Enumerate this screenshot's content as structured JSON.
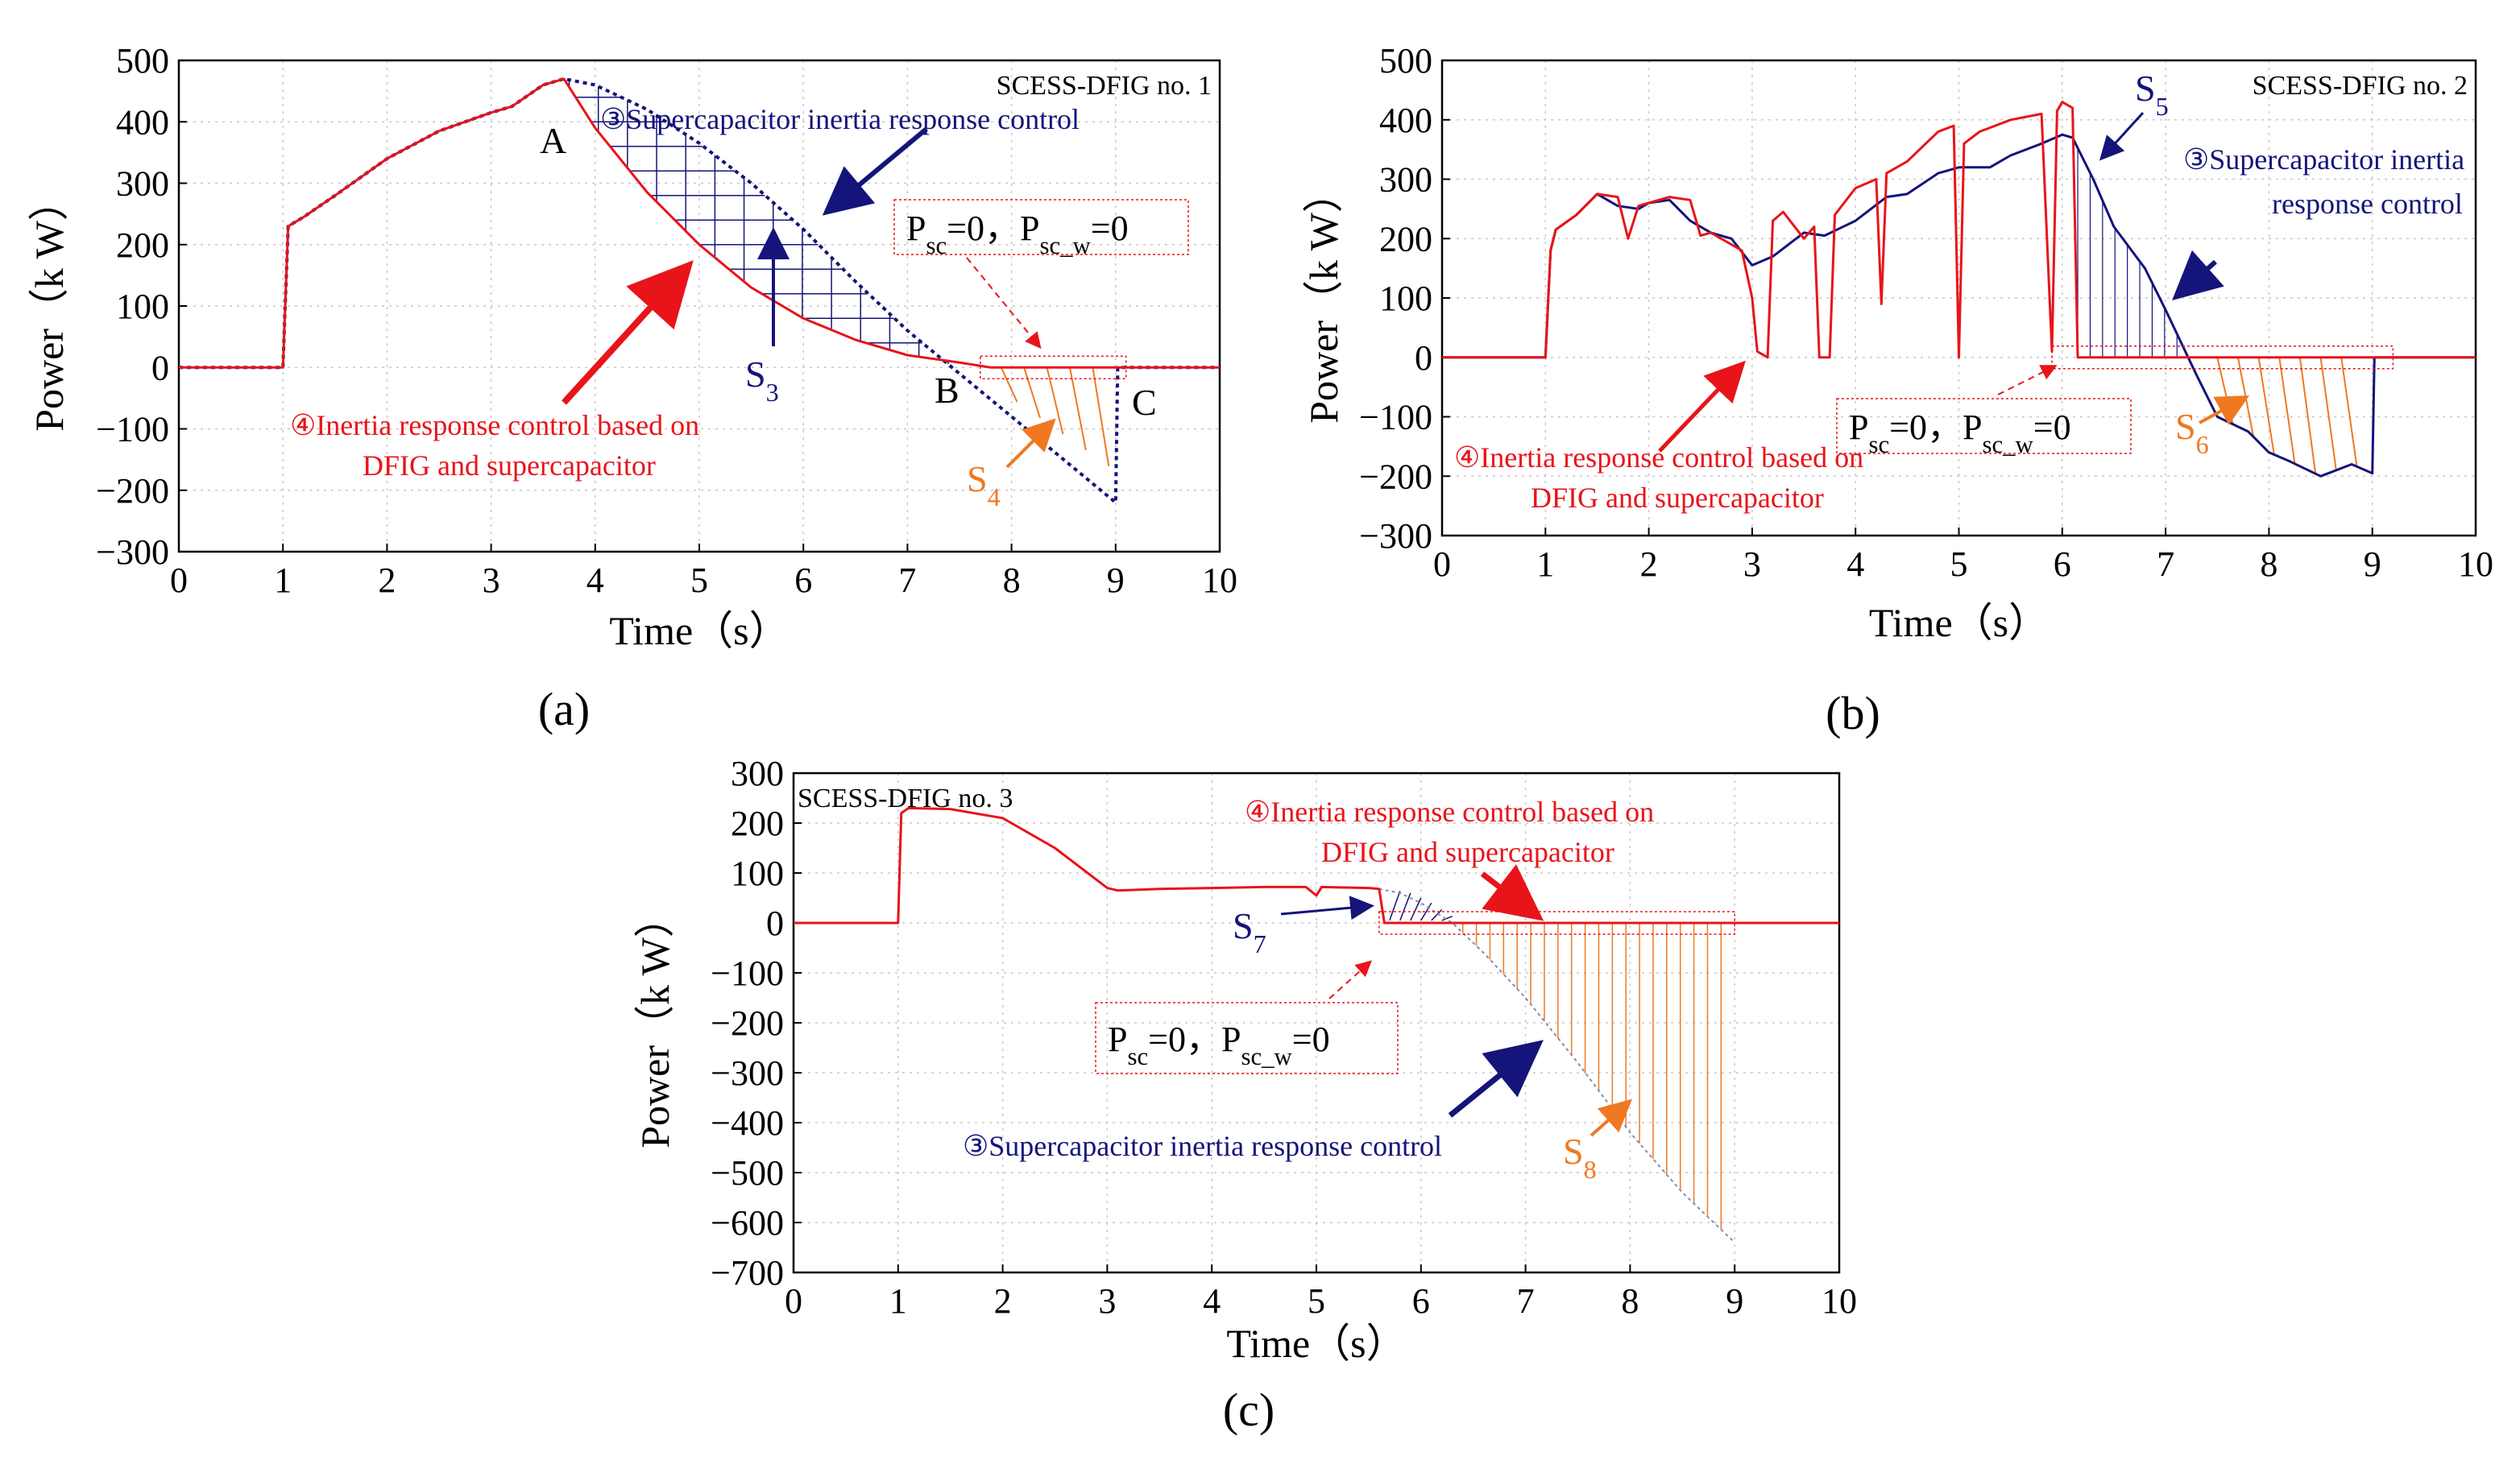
{
  "chart_data": [
    {
      "type": "line",
      "panel": "(a)",
      "corner_label": "SCESS-DFIG no. 1",
      "xlabel": "Time（s）",
      "ylabel": "Power（k W）",
      "xlim": [
        0,
        10
      ],
      "ylim": [
        -300,
        500
      ],
      "xticks": [
        "0",
        "1",
        "2",
        "3",
        "4",
        "5",
        "6",
        "7",
        "8",
        "9",
        "10"
      ],
      "yticks": [
        "−300",
        "−200",
        "−100",
        "0",
        "100",
        "200",
        "300",
        "400",
        "500"
      ],
      "grid": true,
      "colors": {
        "red": "#e8141a",
        "blue": "#14147a",
        "orange": "#f07820"
      },
      "series": [
        {
          "color": "#e8141a",
          "style": "solid",
          "x": [
            0,
            1,
            1.05,
            1.2,
            1.5,
            2,
            2.5,
            3,
            3.2,
            3.5,
            3.7,
            4,
            4.5,
            5,
            5.5,
            6,
            6.5,
            7,
            7.5,
            7.8,
            8,
            9,
            10
          ],
          "y": [
            0,
            0,
            230,
            245,
            280,
            340,
            385,
            415,
            425,
            460,
            470,
            390,
            285,
            200,
            130,
            80,
            45,
            20,
            8,
            0,
            0,
            0,
            0
          ]
        },
        {
          "color": "#14147a",
          "style": "dotted",
          "x": [
            0,
            1,
            1.05,
            1.2,
            1.5,
            2,
            2.5,
            3,
            3.2,
            3.5,
            3.7,
            4,
            4.5,
            5,
            5.5,
            6,
            6.5,
            7,
            7.5,
            8,
            8.5,
            9,
            9.02,
            9.05,
            10
          ],
          "y": [
            0,
            0,
            230,
            245,
            280,
            340,
            385,
            415,
            425,
            460,
            470,
            460,
            420,
            365,
            300,
            225,
            140,
            60,
            -10,
            -80,
            -150,
            -220,
            0,
            0,
            0
          ]
        }
      ],
      "annotations": {
        "point_a": "A",
        "point_b": "B",
        "point_c": "C",
        "s_blue": "S",
        "s_blue_sub": "3",
        "s_orange": "S",
        "s_orange_sub": "4",
        "blue_text_lines": [
          "③Supercapacitor inertia response control"
        ],
        "red_text_lines": [
          "④Inertia response control based on",
          "DFIG and supercapacitor"
        ],
        "psc_text": "P",
        "psc_sub": "sc",
        "psc_eq": "=0，",
        "pscw_text": "P",
        "pscw_sub": "sc_w",
        "pscw_eq": "=0"
      }
    },
    {
      "type": "line",
      "panel": "(b)",
      "corner_label": "SCESS-DFIG no. 2",
      "xlabel": "Time（s）",
      "ylabel": "Power（k W）",
      "xlim": [
        0,
        10
      ],
      "ylim": [
        -300,
        500
      ],
      "xticks": [
        "0",
        "1",
        "2",
        "3",
        "4",
        "5",
        "6",
        "7",
        "8",
        "9",
        "10"
      ],
      "yticks": [
        "−300",
        "−200",
        "−100",
        "0",
        "100",
        "200",
        "300",
        "400",
        "500"
      ],
      "grid": true,
      "series": [
        {
          "color": "#e8141a",
          "style": "solid",
          "x": [
            0,
            1,
            1.05,
            1.1,
            1.3,
            1.5,
            1.7,
            1.8,
            1.9,
            2.0,
            2.2,
            2.4,
            2.5,
            2.6,
            2.9,
            3.0,
            3.05,
            3.15,
            3.2,
            3.3,
            3.5,
            3.6,
            3.65,
            3.75,
            3.8,
            4.0,
            4.2,
            4.25,
            4.3,
            4.5,
            4.8,
            4.95,
            5.0,
            5.05,
            5.2,
            5.5,
            5.8,
            5.9,
            5.95,
            6.0,
            6.1,
            6.15,
            6.2,
            6.3,
            7,
            8,
            9,
            10
          ],
          "y": [
            0,
            0,
            180,
            215,
            240,
            275,
            270,
            200,
            255,
            260,
            270,
            265,
            205,
            210,
            180,
            100,
            10,
            0,
            230,
            245,
            200,
            220,
            0,
            0,
            240,
            285,
            300,
            90,
            310,
            330,
            380,
            390,
            0,
            360,
            380,
            400,
            410,
            10,
            415,
            430,
            420,
            0,
            0,
            0,
            0,
            0,
            0,
            0
          ]
        },
        {
          "color": "#14147a",
          "style": "solid",
          "x": [
            0,
            1,
            1.05,
            1.1,
            1.3,
            1.5,
            1.7,
            1.9,
            2.0,
            2.2,
            2.4,
            2.6,
            2.8,
            3.0,
            3.2,
            3.5,
            3.7,
            4.0,
            4.3,
            4.5,
            4.8,
            5.0,
            5.3,
            5.5,
            5.8,
            6.0,
            6.1,
            6.3,
            6.5,
            6.8,
            7.0,
            7.3,
            7.5,
            7.8,
            8.0,
            8.2,
            8.5,
            8.8,
            9.0,
            9.02,
            9.05,
            10
          ],
          "y": [
            0,
            0,
            180,
            215,
            240,
            275,
            255,
            250,
            260,
            265,
            230,
            210,
            200,
            155,
            170,
            210,
            205,
            230,
            270,
            275,
            310,
            320,
            320,
            340,
            360,
            375,
            370,
            300,
            220,
            150,
            80,
            -30,
            -100,
            -125,
            -160,
            -175,
            -200,
            -180,
            -195,
            0,
            0,
            0
          ]
        }
      ],
      "annotations": {
        "s_blue": "S",
        "s_blue_sub": "5",
        "s_orange": "S",
        "s_orange_sub": "6",
        "blue_text_lines": [
          "③Supercapacitor inertia",
          "response control"
        ],
        "red_text_lines": [
          "④Inertia response control based on",
          "DFIG and supercapacitor"
        ],
        "psc_text": "P",
        "psc_sub": "sc",
        "psc_eq": "=0，",
        "pscw_text": "P",
        "pscw_sub": "sc_w",
        "pscw_eq": "=0"
      }
    },
    {
      "type": "line",
      "panel": "(c)",
      "corner_label": "SCESS-DFIG no. 3",
      "xlabel": "Time（s）",
      "ylabel": "Power（k W）",
      "xlim": [
        0,
        10
      ],
      "ylim": [
        -700,
        300
      ],
      "xticks": [
        "0",
        "1",
        "2",
        "3",
        "4",
        "5",
        "6",
        "7",
        "8",
        "9",
        "10"
      ],
      "yticks": [
        "−700",
        "−600",
        "−500",
        "−400",
        "−300",
        "−200",
        "−100",
        "0",
        "100",
        "200",
        "300"
      ],
      "grid": true,
      "series": [
        {
          "color": "#e8141a",
          "style": "solid",
          "x": [
            0,
            1,
            1.03,
            1.1,
            1.5,
            2,
            2.5,
            3,
            3.1,
            3.5,
            4,
            4.5,
            4.9,
            5,
            5.05,
            5.5,
            5.6,
            5.65,
            6,
            7,
            8,
            9,
            10
          ],
          "y": [
            0,
            0,
            220,
            230,
            228,
            210,
            150,
            70,
            65,
            68,
            70,
            72,
            72,
            55,
            72,
            70,
            68,
            0,
            0,
            0,
            0,
            0,
            0
          ]
        },
        {
          "color": "#8a8aaa",
          "style": "thin",
          "x": [
            5.6,
            5.8,
            6.0,
            6.3,
            6.6,
            7,
            7.5,
            8,
            8.5,
            9
          ],
          "y": [
            68,
            60,
            40,
            0,
            -60,
            -150,
            -280,
            -420,
            -540,
            -640
          ]
        }
      ],
      "annotations": {
        "s_blue": "S",
        "s_blue_sub": "7",
        "s_orange": "S",
        "s_orange_sub": "8",
        "blue_text_lines": [
          "③Supercapacitor inertia response control"
        ],
        "red_text_lines": [
          "④Inertia response control based on",
          "DFIG and supercapacitor"
        ],
        "psc_text": "P",
        "psc_sub": "sc",
        "psc_eq": "=0，",
        "pscw_text": "P",
        "pscw_sub": "sc_w",
        "pscw_eq": "=0"
      }
    }
  ]
}
